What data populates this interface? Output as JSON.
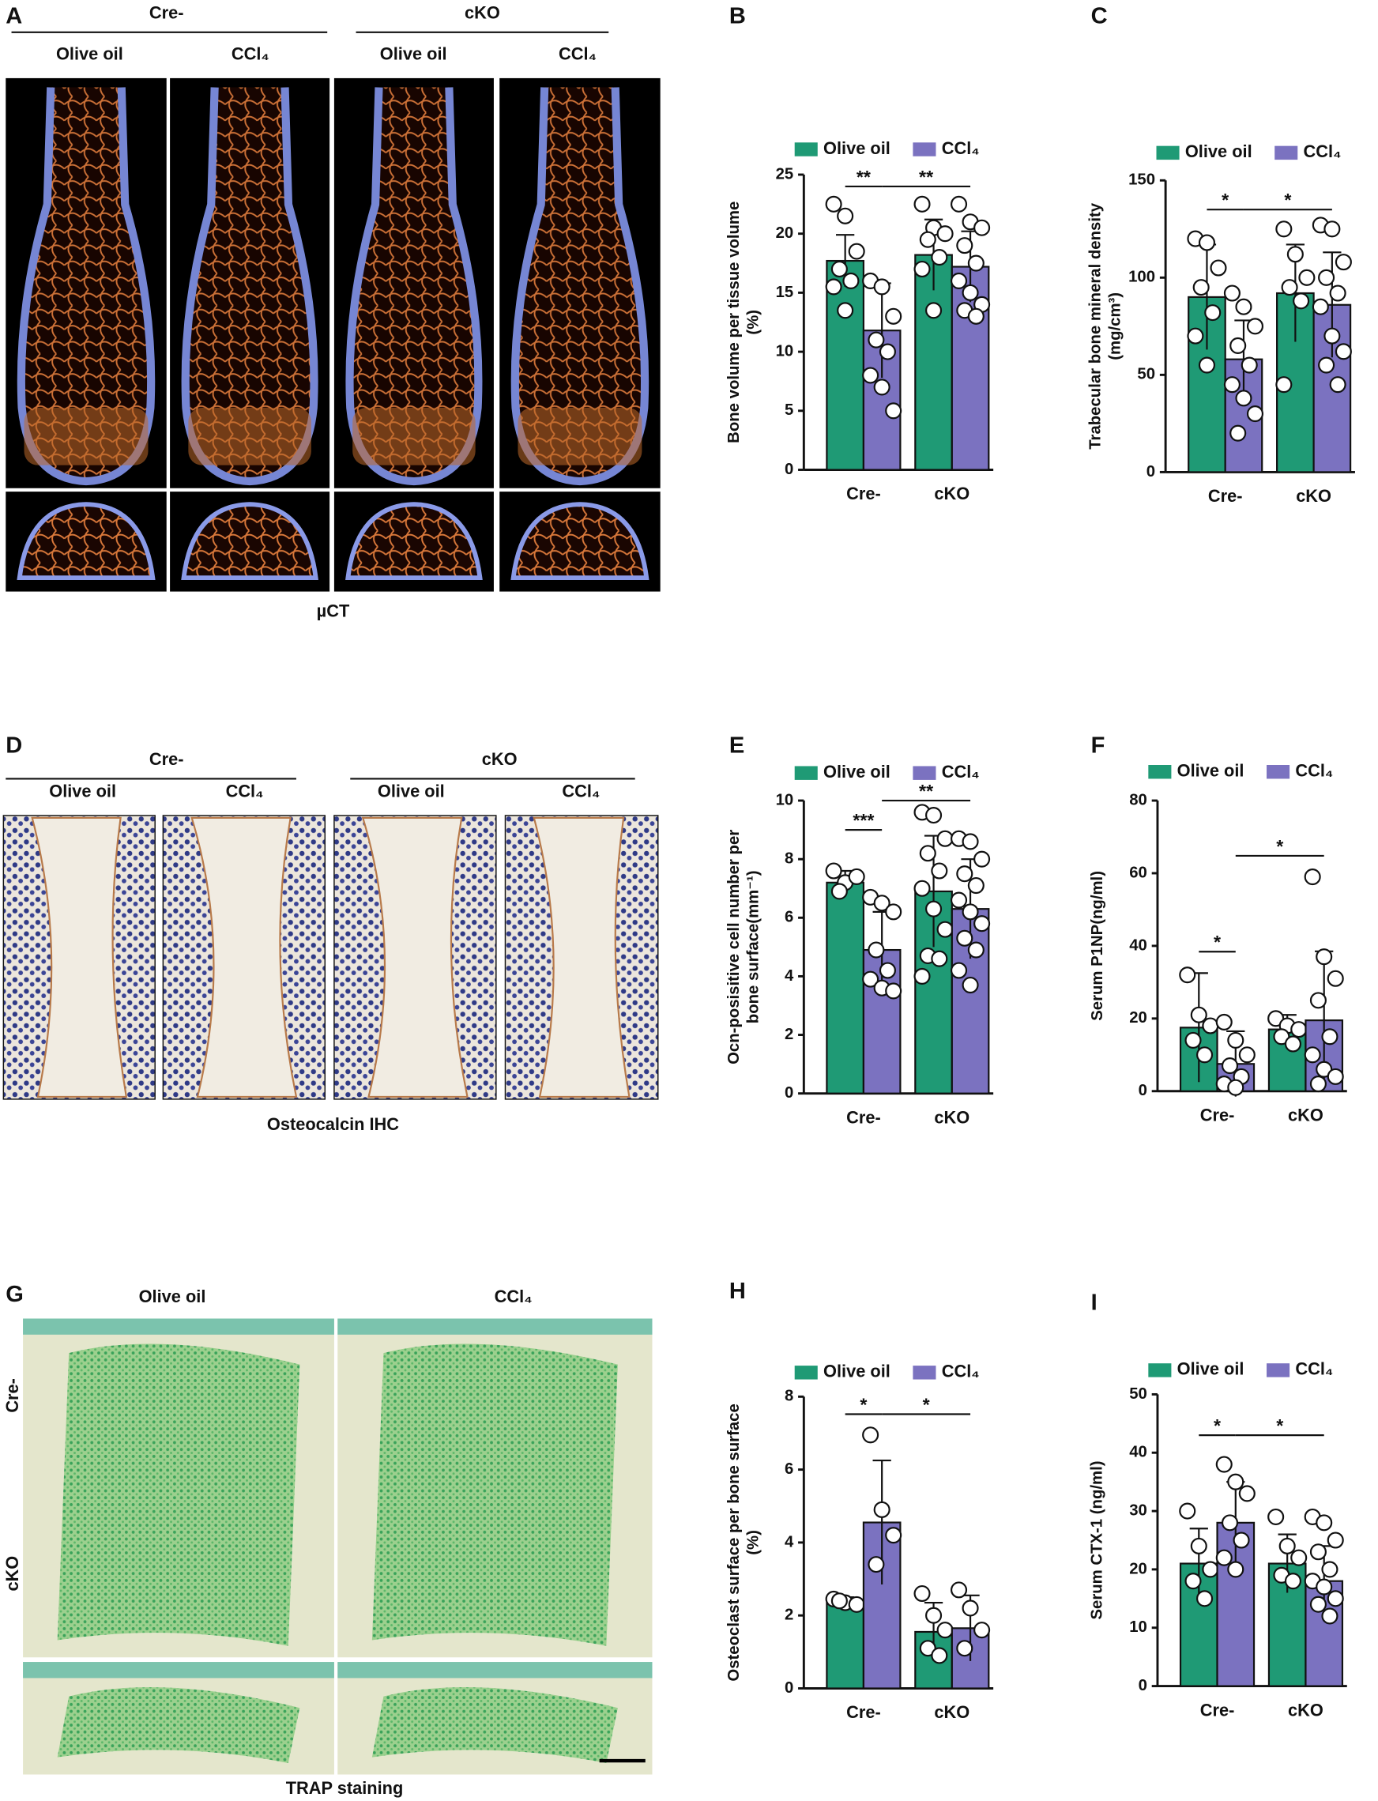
{
  "chart_data": [
    {
      "type": "bar",
      "label": "B",
      "ylabel": [
        "Bone volume per tissue volume",
        "(%)"
      ],
      "categories": [
        "Cre-",
        "cKO"
      ],
      "series": [
        {
          "name": "Olive oil",
          "color": "#1f9a75",
          "values": [
            17.7,
            18.2
          ],
          "errors": [
            2.2,
            3
          ],
          "points": [
            [
              22.5,
              21.5,
              18.5,
              17,
              16,
              15.5,
              13.5
            ],
            [
              22.5,
              20.5,
              20,
              19.5,
              18,
              17,
              13.5
            ]
          ]
        },
        {
          "name": "CCl₄",
          "color": "#7b72c0",
          "values": [
            11.8,
            17.2
          ],
          "errors": [
            4,
            3
          ],
          "points": [
            [
              16,
              15.5,
              13,
              11,
              10,
              8,
              7,
              5
            ],
            [
              22.5,
              21,
              20.5,
              19,
              17.5,
              16,
              15,
              14,
              13.5,
              13
            ]
          ]
        }
      ],
      "ylim": [
        0,
        25
      ],
      "yticks": [
        0,
        5,
        10,
        15,
        20,
        25
      ],
      "significance": [
        "**",
        "**"
      ]
    },
    {
      "type": "bar",
      "label": "C",
      "ylabel": [
        "Trabecular bone mineral density",
        "(mg/cm³)"
      ],
      "categories": [
        "Cre-",
        "cKO"
      ],
      "series": [
        {
          "name": "Olive oil",
          "color": "#1f9a75",
          "values": [
            90,
            92
          ],
          "errors": [
            27,
            25
          ],
          "points": [
            [
              120,
              118,
              105,
              95,
              82,
              70,
              55
            ],
            [
              125,
              112,
              100,
              95,
              88,
              45
            ]
          ]
        },
        {
          "name": "CCl₄",
          "color": "#7b72c0",
          "values": [
            58,
            86
          ],
          "errors": [
            20,
            27
          ],
          "points": [
            [
              92,
              85,
              75,
              65,
              55,
              45,
              38,
              30,
              20
            ],
            [
              127,
              125,
              108,
              100,
              92,
              85,
              70,
              62,
              55,
              45
            ]
          ]
        }
      ],
      "ylim": [
        0,
        150
      ],
      "yticks": [
        0,
        50,
        100,
        150
      ],
      "significance": [
        "*",
        "*"
      ]
    },
    {
      "type": "bar",
      "label": "E",
      "ylabel": [
        "Ocn-posisitive cell number per",
        "bone surface(mm⁻¹)"
      ],
      "categories": [
        "Cre-",
        "cKO"
      ],
      "series": [
        {
          "name": "Olive oil",
          "color": "#1f9a75",
          "values": [
            7.2,
            6.9
          ],
          "errors": [
            0.4,
            1.9
          ],
          "points": [
            [
              7.6,
              7.2,
              7.4,
              6.9
            ],
            [
              9.6,
              9.5,
              8.7,
              8.2,
              7.6,
              7,
              6.3,
              5.6,
              4.7,
              4.6,
              4
            ]
          ]
        },
        {
          "name": "CCl₄",
          "color": "#7b72c0",
          "values": [
            4.9,
            6.3
          ],
          "errors": [
            1.3,
            1.7
          ],
          "points": [
            [
              6.7,
              6.5,
              6.2,
              4.9,
              4.2,
              3.9,
              3.6,
              3.5
            ],
            [
              8.7,
              8.6,
              8,
              7.5,
              7.1,
              6.6,
              6.2,
              5.8,
              5.3,
              4.9,
              4.2,
              3.7
            ]
          ]
        }
      ],
      "ylim": [
        0,
        10
      ],
      "yticks": [
        0,
        2,
        4,
        6,
        8,
        10
      ],
      "significance": [
        "***",
        "**"
      ]
    },
    {
      "type": "bar",
      "label": "F",
      "ylabel": [
        "Serum P1NP(ng/ml)"
      ],
      "categories": [
        "Cre-",
        "cKO"
      ],
      "series": [
        {
          "name": "Olive oil",
          "color": "#1f9a75",
          "values": [
            17.5,
            17
          ],
          "errors": [
            15,
            4
          ],
          "points": [
            [
              32,
              21,
              18,
              14,
              10
            ],
            [
              20,
              18,
              17,
              15,
              13
            ]
          ]
        },
        {
          "name": "CCl₄",
          "color": "#7b72c0",
          "values": [
            7.5,
            19.5
          ],
          "errors": [
            9,
            19
          ],
          "points": [
            [
              19,
              14,
              10,
              7,
              4,
              2,
              1
            ],
            [
              59,
              37,
              31,
              25,
              15,
              10,
              6,
              4,
              2
            ]
          ]
        }
      ],
      "ylim": [
        0,
        80
      ],
      "yticks": [
        0,
        20,
        40,
        60,
        80
      ],
      "significance": [
        "*",
        "*"
      ]
    },
    {
      "type": "bar",
      "label": "H",
      "ylabel": [
        "Osteoclast surface per bone surface",
        "(%)"
      ],
      "categories": [
        "Cre-",
        "cKO"
      ],
      "series": [
        {
          "name": "Olive oil",
          "color": "#1f9a75",
          "values": [
            2.35,
            1.55
          ],
          "errors": [
            0.15,
            0.8
          ],
          "points": [
            [
              2.45,
              2.35,
              2.3,
              2.4
            ],
            [
              2.6,
              2.0,
              1.6,
              1.1,
              0.9
            ]
          ]
        },
        {
          "name": "CCl₄",
          "color": "#7b72c0",
          "values": [
            4.55,
            1.65
          ],
          "errors": [
            1.7,
            0.9
          ],
          "points": [
            [
              6.95,
              4.9,
              4.2,
              3.4
            ],
            [
              2.7,
              2.2,
              1.6,
              1.1
            ]
          ]
        }
      ],
      "ylim": [
        0,
        8
      ],
      "yticks": [
        0,
        2,
        4,
        6,
        8
      ],
      "significance": [
        "*",
        "*"
      ]
    },
    {
      "type": "bar",
      "label": "I",
      "ylabel": [
        "Serum CTX-1 (ng/ml)"
      ],
      "categories": [
        "Cre-",
        "cKO"
      ],
      "series": [
        {
          "name": "Olive oil",
          "color": "#1f9a75",
          "values": [
            21,
            21
          ],
          "errors": [
            6,
            5
          ],
          "points": [
            [
              30,
              24,
              20,
              18,
              15
            ],
            [
              29,
              24,
              22,
              19,
              18
            ]
          ]
        },
        {
          "name": "CCl₄",
          "color": "#7b72c0",
          "values": [
            28,
            18
          ],
          "errors": [
            7,
            6
          ],
          "points": [
            [
              38,
              35,
              33,
              28,
              25,
              22,
              20
            ],
            [
              29,
              28,
              25,
              23,
              20,
              18,
              17,
              15,
              14,
              12
            ]
          ]
        }
      ],
      "ylim": [
        0,
        50
      ],
      "yticks": [
        0,
        10,
        20,
        30,
        40,
        50
      ],
      "significance": [
        "*",
        "*"
      ]
    }
  ],
  "image_panels": [
    {
      "label": "A",
      "groups": [
        "Cre-",
        "cKO"
      ],
      "columns": [
        "Olive oil",
        "CCl₄",
        "Olive oil",
        "CCl₄"
      ],
      "caption": "µCT"
    },
    {
      "label": "D",
      "groups": [
        "Cre-",
        "cKO"
      ],
      "columns": [
        "Olive oil",
        "CCl₄",
        "Olive oil",
        "CCl₄"
      ],
      "caption": "Osteocalcin IHC"
    },
    {
      "label": "G",
      "columns": [
        "Olive oil",
        "CCl₄"
      ],
      "rows": [
        "Cre-",
        "cKO"
      ],
      "caption": "TRAP staining"
    }
  ]
}
